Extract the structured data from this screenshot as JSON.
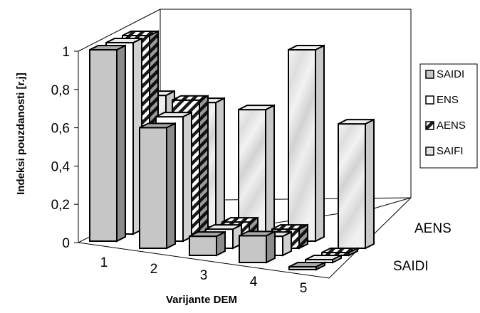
{
  "chart_data": {
    "type": "bar",
    "variant": "3d-column",
    "xlabel": "Varijante DEM",
    "ylabel": "Indeksi pouzdanosti [r.j]",
    "categories": [
      "1",
      "2",
      "3",
      "4",
      "5"
    ],
    "y_ticks": [
      "0",
      "0,2",
      "0,4",
      "0,6",
      "0,8",
      "1"
    ],
    "ylim": [
      0,
      1
    ],
    "depth_labels": [
      "SAIDI",
      "AENS"
    ],
    "legend_position": "right",
    "series": [
      {
        "name": "SAIDI",
        "values": [
          1.0,
          0.63,
          0.1,
          0.14,
          0.0
        ],
        "fill": "light-gray"
      },
      {
        "name": "ENS",
        "values": [
          1.0,
          0.65,
          0.1,
          0.1,
          0.0
        ],
        "fill": "white"
      },
      {
        "name": "AENS",
        "values": [
          1.0,
          0.7,
          0.1,
          0.1,
          0.0
        ],
        "fill": "diagonal-hatch"
      },
      {
        "name": "SAIFI",
        "values": [
          0.65,
          0.65,
          0.65,
          1.0,
          0.65
        ],
        "fill": "marble"
      }
    ]
  }
}
